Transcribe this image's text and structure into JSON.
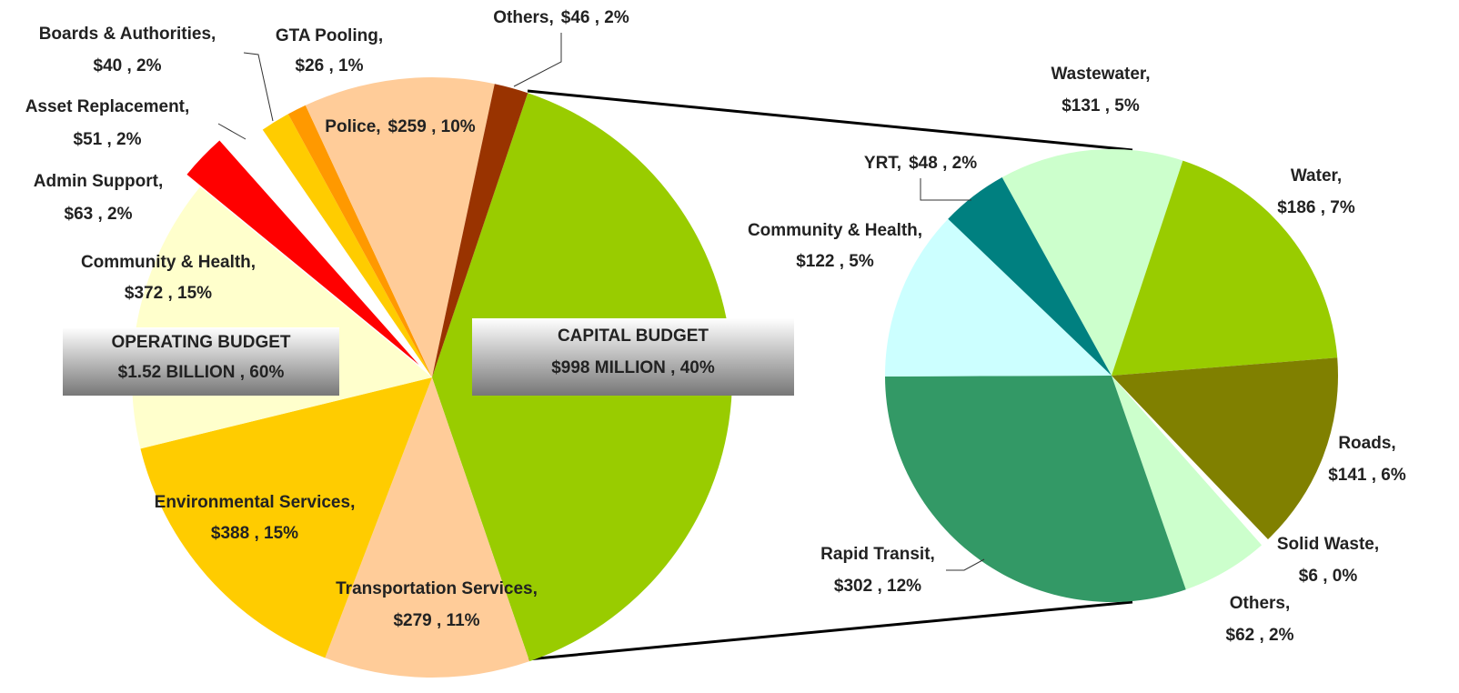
{
  "chart_data": [
    {
      "type": "pie",
      "categories": [
        "CAPITAL BUDGET",
        "Transportation Services,",
        "Environmental Services,",
        "Community & Health,",
        "Admin Support,",
        "Asset Replacement,",
        "Boards & Authorities,",
        "GTA Pooling,",
        "Police,",
        "Others,"
      ],
      "values": [
        998,
        279,
        388,
        372,
        63,
        51,
        40,
        26,
        259,
        46
      ],
      "value_labels": [
        "$998 MILLION , 40%",
        "$279 , 11%",
        "$388 , 15%",
        "$372 , 15%",
        "$63 , 2%",
        "$51 , 2%",
        "$40 , 2%",
        "$26 , 1%",
        "$259 , 10%",
        "$46 , 2%"
      ],
      "colors": [
        "#99cc00",
        "#ffcc99",
        "#ffcc00",
        "#ffffcc",
        "#ff0000",
        "#ffffff",
        "#ffcc00",
        "#ff9900",
        "#ffcc99",
        "#993300"
      ],
      "annotations": [
        "OPERATING BUDGET",
        "$1.52 BILLION , 60%"
      ]
    },
    {
      "type": "pie",
      "categories": [
        "Wastewater,",
        "Water,",
        "Roads,",
        "Solid Waste,",
        "Others,",
        "Rapid Transit,",
        "Community & Health,",
        "YRT,"
      ],
      "values": [
        131,
        186,
        141,
        6,
        62,
        302,
        122,
        48
      ],
      "value_labels": [
        "$131 , 5%",
        "$186 , 7%",
        "$141 , 6%",
        "$6 , 0%",
        "$62 , 2%",
        "$302 , 12%",
        "$122 , 5%",
        "$48 , 2%"
      ],
      "colors": [
        "#ccffcc",
        "#99cc00",
        "#808000",
        "#ffffff",
        "#ccffcc",
        "#339966",
        "#ccffff",
        "#008080"
      ]
    }
  ]
}
